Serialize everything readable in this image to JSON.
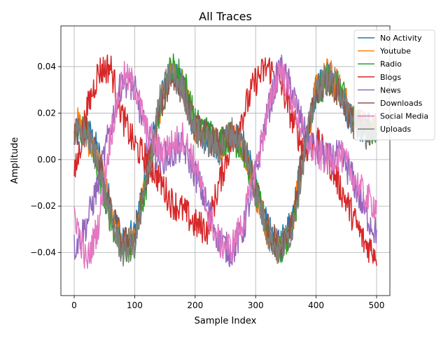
{
  "chart_data": {
    "type": "line",
    "title": "All Traces",
    "xlabel": "Sample Index",
    "ylabel": "Amplitude",
    "xlim": [
      -22,
      522
    ],
    "ylim": [
      -0.0585,
      0.0575
    ],
    "xticks": [
      0,
      100,
      200,
      300,
      400,
      500
    ],
    "yticks": [
      -0.04,
      -0.02,
      0.0,
      0.02,
      0.04
    ],
    "xtick_labels": [
      "0",
      "100",
      "200",
      "300",
      "400",
      "500"
    ],
    "ytick_labels": [
      "−0.04",
      "−0.02",
      "0.00",
      "0.02",
      "0.04"
    ],
    "grid": true,
    "legend_position": "top-right",
    "series": [
      {
        "name": "No Activity",
        "color": "#1f77b4",
        "x": [
          0,
          20,
          40,
          60,
          80,
          100,
          120,
          140,
          160,
          180,
          200,
          220,
          240,
          260,
          280,
          300,
          320,
          340,
          360,
          380,
          400,
          420,
          440,
          460,
          480,
          500
        ],
        "values": [
          0.01,
          0.014,
          0.003,
          -0.02,
          -0.036,
          -0.032,
          -0.004,
          0.022,
          0.04,
          0.03,
          0.013,
          0.01,
          0.005,
          0.01,
          0.008,
          -0.012,
          -0.03,
          -0.038,
          -0.025,
          0.006,
          0.03,
          0.036,
          0.028,
          0.016,
          0.014,
          0.015
        ]
      },
      {
        "name": "Youtube",
        "color": "#ff7f0e",
        "x": [
          0,
          20,
          40,
          60,
          80,
          100,
          120,
          140,
          160,
          180,
          200,
          220,
          240,
          260,
          280,
          300,
          320,
          340,
          360,
          380,
          400,
          420,
          440,
          460,
          480,
          500
        ],
        "values": [
          0.018,
          0.01,
          0.0,
          -0.022,
          -0.038,
          -0.035,
          -0.008,
          0.02,
          0.038,
          0.032,
          0.014,
          0.011,
          0.006,
          0.011,
          0.006,
          -0.014,
          -0.032,
          -0.04,
          -0.028,
          0.004,
          0.03,
          0.038,
          0.03,
          0.018,
          0.015,
          0.012
        ]
      },
      {
        "name": "Radio",
        "color": "#2ca02c",
        "x": [
          0,
          20,
          40,
          60,
          80,
          100,
          120,
          140,
          160,
          180,
          200,
          220,
          240,
          260,
          280,
          300,
          320,
          340,
          360,
          380,
          400,
          420,
          440,
          460,
          480,
          500
        ],
        "values": [
          0.01,
          0.014,
          -0.004,
          -0.026,
          -0.04,
          -0.036,
          -0.01,
          0.02,
          0.04,
          0.036,
          0.016,
          0.012,
          0.008,
          0.01,
          0.004,
          -0.014,
          -0.03,
          -0.04,
          -0.03,
          0.0,
          0.026,
          0.036,
          0.03,
          0.018,
          0.014,
          0.012
        ]
      },
      {
        "name": "Blogs",
        "color": "#d62728",
        "x": [
          0,
          20,
          40,
          60,
          80,
          100,
          120,
          140,
          160,
          180,
          200,
          220,
          240,
          260,
          280,
          300,
          320,
          340,
          360,
          380,
          400,
          420,
          440,
          460,
          480,
          500
        ],
        "values": [
          -0.008,
          0.02,
          0.038,
          0.04,
          0.018,
          0.006,
          0.0,
          -0.008,
          -0.018,
          -0.022,
          -0.028,
          -0.03,
          -0.01,
          0.008,
          0.02,
          0.034,
          0.04,
          0.034,
          0.018,
          0.004,
          0.008,
          0.0,
          -0.012,
          -0.024,
          -0.036,
          -0.04
        ]
      },
      {
        "name": "News",
        "color": "#9467bd",
        "x": [
          0,
          20,
          40,
          60,
          80,
          100,
          120,
          140,
          160,
          180,
          200,
          220,
          240,
          260,
          280,
          300,
          320,
          340,
          360,
          380,
          400,
          420,
          440,
          460,
          480,
          500
        ],
        "values": [
          -0.038,
          -0.028,
          -0.01,
          0.014,
          0.035,
          0.03,
          0.01,
          0.0,
          0.002,
          0.006,
          -0.006,
          -0.02,
          -0.035,
          -0.04,
          -0.03,
          -0.006,
          0.02,
          0.04,
          0.03,
          0.012,
          0.004,
          0.0,
          0.002,
          -0.008,
          -0.022,
          -0.032
        ]
      },
      {
        "name": "Downloads",
        "color": "#8c564b",
        "x": [
          0,
          20,
          40,
          60,
          80,
          100,
          120,
          140,
          160,
          180,
          200,
          220,
          240,
          260,
          280,
          300,
          320,
          340,
          360,
          380,
          400,
          420,
          440,
          460,
          480,
          500
        ],
        "values": [
          0.012,
          0.012,
          0.0,
          -0.022,
          -0.036,
          -0.034,
          -0.008,
          0.02,
          0.036,
          0.03,
          0.014,
          0.01,
          0.006,
          0.01,
          0.006,
          -0.012,
          -0.03,
          -0.038,
          -0.026,
          0.004,
          0.028,
          0.034,
          0.028,
          0.016,
          0.014,
          0.012
        ]
      },
      {
        "name": "Social Media",
        "color": "#e377c2",
        "x": [
          0,
          20,
          40,
          60,
          80,
          100,
          120,
          140,
          160,
          180,
          200,
          220,
          240,
          260,
          280,
          300,
          320,
          340,
          360,
          380,
          400,
          420,
          440,
          460,
          480,
          500
        ],
        "values": [
          -0.022,
          -0.045,
          -0.028,
          0.01,
          0.036,
          0.032,
          0.012,
          0.004,
          0.006,
          0.01,
          -0.002,
          -0.022,
          -0.036,
          -0.038,
          -0.026,
          -0.004,
          0.02,
          0.04,
          0.026,
          0.01,
          0.002,
          0.0,
          0.002,
          -0.006,
          -0.016,
          -0.02
        ]
      },
      {
        "name": "Uploads",
        "color": "#7f7f7f",
        "x": [
          0,
          20,
          40,
          60,
          80,
          100,
          120,
          140,
          160,
          180,
          200,
          220,
          240,
          260,
          280,
          300,
          320,
          340,
          360,
          380,
          400,
          420,
          440,
          460,
          480,
          500
        ],
        "values": [
          0.01,
          0.012,
          -0.002,
          -0.026,
          -0.04,
          -0.036,
          -0.01,
          0.024,
          0.038,
          0.03,
          0.012,
          0.008,
          0.004,
          0.012,
          0.006,
          -0.014,
          -0.032,
          -0.04,
          -0.03,
          0.002,
          0.03,
          0.036,
          0.03,
          0.016,
          0.012,
          0.008
        ]
      }
    ]
  }
}
